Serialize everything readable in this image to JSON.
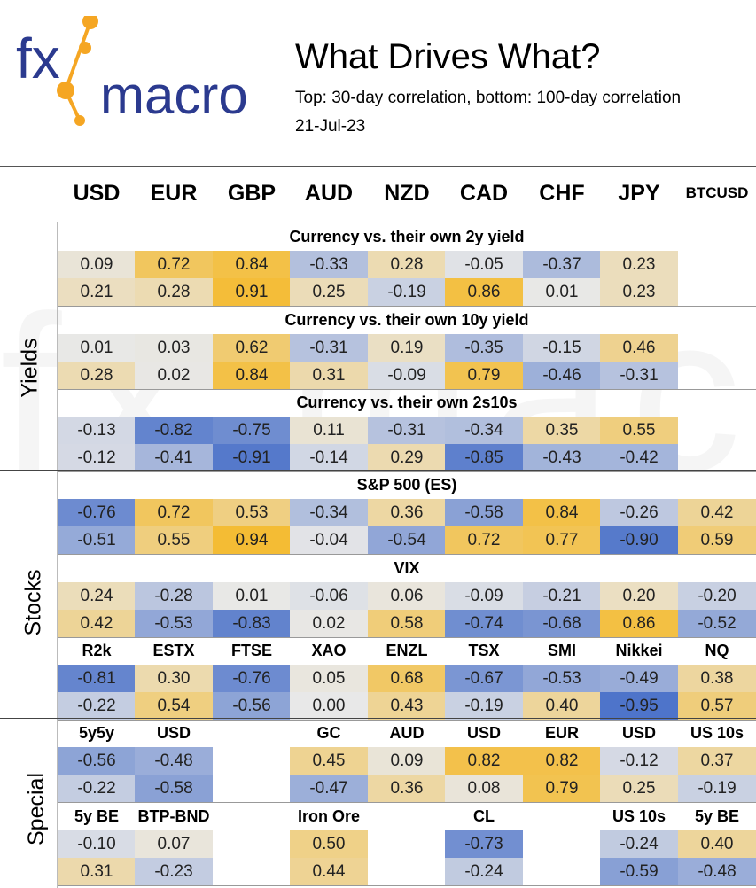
{
  "logo": {
    "text_fx": "fx",
    "text_macro": "macro",
    "colors": {
      "blue": "#2b3a8f",
      "orange": "#f5a623"
    }
  },
  "header": {
    "title": "What Drives What?",
    "subtitle": "Top: 30-day correlation, bottom: 100-day correlation",
    "date": "21-Jul-23"
  },
  "columns": [
    "USD",
    "EUR",
    "GBP",
    "AUD",
    "NZD",
    "CAD",
    "CHF",
    "JPY",
    "BTCUSD"
  ],
  "groups": {
    "yields": "Yields",
    "stocks": "Stocks",
    "special": "Special"
  },
  "sections": [
    {
      "title": "Currency vs. their own 2y yield",
      "top": [
        "0.09",
        "0.72",
        "0.84",
        "-0.33",
        "0.28",
        "-0.05",
        "-0.37",
        "0.23",
        ""
      ],
      "bottom": [
        "0.21",
        "0.28",
        "0.91",
        "0.25",
        "-0.19",
        "0.86",
        "0.01",
        "0.23",
        ""
      ]
    },
    {
      "title": "Currency vs. their own 10y yield",
      "top": [
        "0.01",
        "0.03",
        "0.62",
        "-0.31",
        "0.19",
        "-0.35",
        "-0.15",
        "0.46",
        ""
      ],
      "bottom": [
        "0.28",
        "0.02",
        "0.84",
        "0.31",
        "-0.09",
        "0.79",
        "-0.46",
        "-0.31",
        ""
      ]
    },
    {
      "title": "Currency vs. their own 2s10s",
      "top": [
        "-0.13",
        "-0.82",
        "-0.75",
        "0.11",
        "-0.31",
        "-0.34",
        "0.35",
        "0.55",
        ""
      ],
      "bottom": [
        "-0.12",
        "-0.41",
        "-0.91",
        "-0.14",
        "0.29",
        "-0.85",
        "-0.43",
        "-0.42",
        ""
      ]
    },
    {
      "title": "S&P 500 (ES)",
      "top": [
        "-0.76",
        "0.72",
        "0.53",
        "-0.34",
        "0.36",
        "-0.58",
        "0.84",
        "-0.26",
        "0.42"
      ],
      "bottom": [
        "-0.51",
        "0.55",
        "0.94",
        "-0.04",
        "-0.54",
        "0.72",
        "0.77",
        "-0.90",
        "0.59"
      ]
    },
    {
      "title": "VIX",
      "top": [
        "0.24",
        "-0.28",
        "0.01",
        "-0.06",
        "0.06",
        "-0.09",
        "-0.21",
        "0.20",
        "-0.20"
      ],
      "bottom": [
        "0.42",
        "-0.53",
        "-0.83",
        "0.02",
        "0.58",
        "-0.74",
        "-0.68",
        "0.86",
        "-0.52"
      ]
    },
    {
      "labels": [
        "R2k",
        "ESTX",
        "FTSE",
        "XAO",
        "ENZL",
        "TSX",
        "SMI",
        "Nikkei",
        "NQ"
      ],
      "top": [
        "-0.81",
        "0.30",
        "-0.76",
        "0.05",
        "0.68",
        "-0.67",
        "-0.53",
        "-0.49",
        "0.38"
      ],
      "bottom": [
        "-0.22",
        "0.54",
        "-0.56",
        "0.00",
        "0.43",
        "-0.19",
        "0.40",
        "-0.95",
        "0.57"
      ]
    },
    {
      "labels": [
        "5y5y",
        "USD",
        "",
        "GC",
        "AUD",
        "USD",
        "EUR",
        "USD",
        "US 10s"
      ],
      "top": [
        "-0.56",
        "-0.48",
        "",
        "0.45",
        "0.09",
        "0.82",
        "0.82",
        "-0.12",
        "0.37"
      ],
      "bottom": [
        "-0.22",
        "-0.58",
        "",
        "-0.47",
        "0.36",
        "0.08",
        "0.79",
        "0.25",
        "-0.19"
      ]
    },
    {
      "labels": [
        "5y BE",
        "BTP-BND",
        "",
        "Iron Ore",
        "",
        "CL",
        "",
        "US 10s",
        "5y BE"
      ],
      "top": [
        "-0.10",
        "0.07",
        "",
        "0.50",
        "",
        "-0.73",
        "",
        "-0.24",
        "0.40"
      ],
      "bottom": [
        "0.31",
        "-0.23",
        "",
        "0.44",
        "",
        "-0.24",
        "",
        "-0.59",
        "-0.48"
      ]
    }
  ]
}
